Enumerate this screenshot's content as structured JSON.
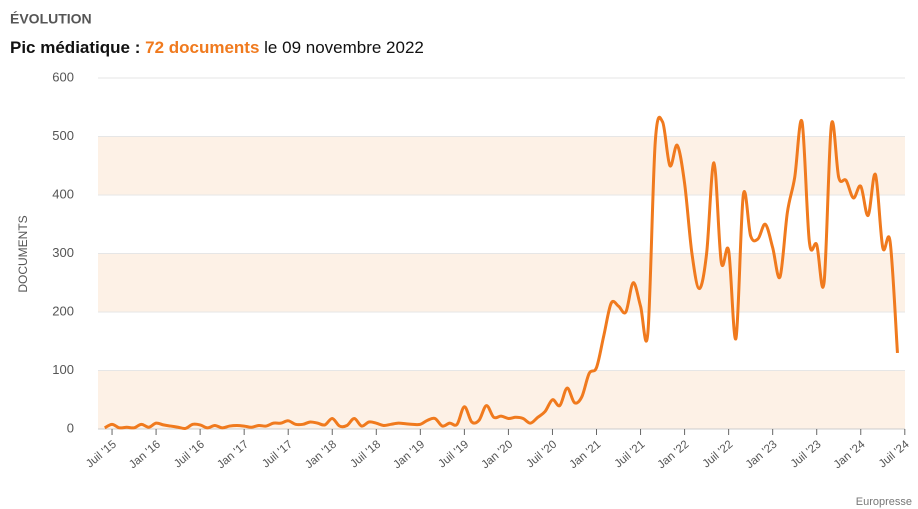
{
  "chart_data": {
    "type": "line",
    "section": "ÉVOLUTION",
    "subtitle_lead": "Pic médiatique :",
    "subtitle_highlight": "72 documents",
    "subtitle_tail": "le 09 novembre 2022",
    "ylabel": "DOCUMENTS",
    "source": "Europresse",
    "color": "#f07a1e",
    "band_color": "#fdf1e6",
    "grid": true,
    "ylim": [
      0,
      600
    ],
    "yticks": [
      0,
      100,
      200,
      300,
      400,
      500,
      600
    ],
    "categories": [
      null,
      "Juil '15",
      null,
      null,
      null,
      null,
      null,
      "Jan '16",
      null,
      null,
      null,
      null,
      null,
      "Juil '16",
      null,
      null,
      null,
      null,
      null,
      "Jan '17",
      null,
      null,
      null,
      null,
      null,
      "Juil '17",
      null,
      null,
      null,
      null,
      null,
      "Jan '18",
      null,
      null,
      null,
      null,
      null,
      "Juil '18",
      null,
      null,
      null,
      null,
      null,
      "Jan '19",
      null,
      null,
      null,
      null,
      null,
      "Juil '19",
      null,
      null,
      null,
      null,
      null,
      "Jan '20",
      null,
      null,
      null,
      null,
      null,
      "Juil '20",
      null,
      null,
      null,
      null,
      null,
      "Jan '21",
      null,
      null,
      null,
      null,
      null,
      "Juil '21",
      null,
      null,
      null,
      null,
      null,
      "Jan '22",
      null,
      null,
      null,
      null,
      null,
      "Juil '22",
      null,
      null,
      null,
      null,
      null,
      "Jan '23",
      null,
      null,
      null,
      null,
      null,
      "Juil '23",
      null,
      null,
      null,
      null,
      null,
      "Jan '24",
      null,
      null,
      null,
      null,
      null,
      "Juil '24"
    ],
    "values": [
      2,
      8,
      2,
      3,
      2,
      8,
      3,
      10,
      7,
      5,
      3,
      1,
      8,
      7,
      2,
      6,
      2,
      5,
      6,
      5,
      3,
      6,
      5,
      10,
      10,
      14,
      8,
      8,
      12,
      10,
      7,
      18,
      5,
      6,
      18,
      5,
      12,
      10,
      6,
      8,
      10,
      9,
      8,
      8,
      15,
      18,
      5,
      10,
      8,
      38,
      12,
      15,
      40,
      20,
      22,
      18,
      20,
      18,
      10,
      20,
      30,
      50,
      40,
      70,
      45,
      55,
      95,
      105,
      160,
      215,
      210,
      200,
      250,
      210,
      165,
      490,
      525,
      450,
      485,
      420,
      300,
      240,
      300,
      455,
      285,
      305,
      155,
      400,
      330,
      325,
      350,
      310,
      260,
      370,
      430,
      525,
      320,
      315,
      250,
      520,
      430,
      425,
      395,
      415,
      365,
      435,
      310,
      320,
      130,
      null
    ]
  }
}
